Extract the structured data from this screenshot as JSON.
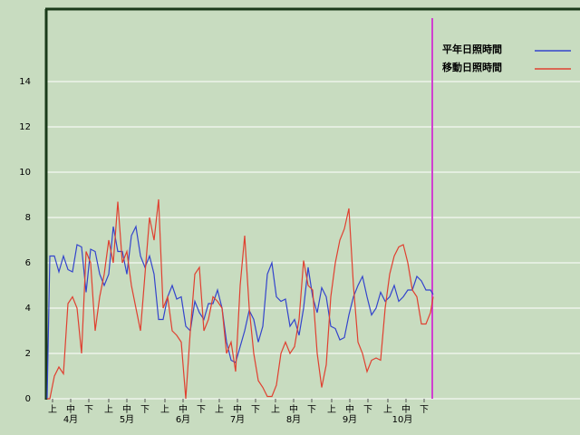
{
  "chart_data": {
    "type": "line",
    "x": [
      0,
      1.5,
      4,
      6.5,
      9,
      11.5,
      14,
      16.5,
      19,
      21.5,
      24,
      26.5,
      29,
      31.5,
      34,
      36.5,
      39,
      41.5,
      44,
      46.5,
      49,
      51.5,
      54,
      56.5,
      59,
      61.5,
      64,
      66.5,
      69,
      71.5,
      74,
      76.5,
      79,
      81.5,
      84,
      86.5,
      89,
      91.5,
      94,
      96.5,
      99,
      101.5,
      104,
      106.5,
      109,
      111.5,
      114,
      116.5,
      119,
      121.5,
      124,
      126.5,
      129,
      131.5,
      134,
      136.5,
      139,
      141.5,
      144,
      146.5,
      149,
      151.5,
      154,
      156.5,
      159,
      161.5,
      164,
      166.5,
      169,
      171.5,
      174,
      176.5,
      179,
      181.5,
      184,
      186.5,
      189,
      191.5,
      194,
      196.5,
      199,
      201.5,
      204,
      206.5,
      209,
      211.5,
      213
    ],
    "series": [
      {
        "name": "平年日照時間",
        "color": "#3344cc",
        "values": [
          0,
          6.3,
          6.3,
          5.6,
          6.3,
          5.7,
          5.6,
          6.8,
          6.7,
          4.7,
          6.6,
          6.5,
          5.5,
          5,
          5.5,
          7.6,
          6.5,
          6.5,
          5.5,
          7.2,
          7.6,
          6.3,
          5.8,
          6.3,
          5.5,
          3.5,
          3.5,
          4.5,
          5,
          4.4,
          4.5,
          3.2,
          3,
          4.3,
          3.8,
          3.5,
          4.2,
          4.2,
          4.8,
          4,
          2.5,
          1.7,
          1.6,
          2.3,
          3,
          3.9,
          3.5,
          2.5,
          3.2,
          5.5,
          6,
          4.5,
          4.3,
          4.4,
          3.2,
          3.5,
          2.8,
          4,
          5.8,
          4.5,
          3.8,
          4.9,
          4.5,
          3.2,
          3.1,
          2.6,
          2.7,
          3.7,
          4.5,
          5,
          5.4,
          4.5,
          3.7,
          4,
          4.7,
          4.3,
          4.5,
          5,
          4.3,
          4.5,
          4.8,
          4.8,
          5.4,
          5.2,
          4.8,
          4.8,
          4.6
        ]
      },
      {
        "name": "移動日照時間",
        "color": "#e04030",
        "values": [
          0,
          0,
          1,
          1.4,
          1.1,
          4.2,
          4.5,
          4,
          2,
          6.5,
          6,
          3,
          4.5,
          5.5,
          7,
          6,
          8.7,
          6,
          6.5,
          5,
          4,
          3,
          5.5,
          8,
          7,
          8.8,
          4,
          4.5,
          3,
          2.8,
          2.5,
          0,
          3,
          5.5,
          5.8,
          3,
          3.5,
          4.5,
          4.3,
          4,
          2,
          2.5,
          1.2,
          5,
          7.2,
          4,
          2,
          0.8,
          0.5,
          0.1,
          0.1,
          0.6,
          2,
          2.5,
          2,
          2.3,
          3.5,
          6.1,
          5,
          4.8,
          2,
          0.5,
          1.5,
          4.5,
          6,
          7,
          7.5,
          8.4,
          5,
          2.5,
          2,
          1.2,
          1.7,
          1.8,
          1.7,
          4,
          5.5,
          6.3,
          6.7,
          6.8,
          6,
          4.8,
          4.5,
          3.3,
          3.3,
          3.8,
          4.5
        ]
      }
    ],
    "xlim": [
      0,
      213
    ],
    "ylim": [
      0,
      17.2
    ],
    "yticks": [
      0,
      2,
      4,
      6,
      8,
      10,
      12,
      14
    ],
    "xticks": [
      {
        "value": 3,
        "label": "上"
      },
      {
        "value": 13,
        "label": "中"
      },
      {
        "value": 23,
        "label": "下"
      },
      {
        "value": 34,
        "label": "上"
      },
      {
        "value": 44,
        "label": "中"
      },
      {
        "value": 54,
        "label": "下"
      },
      {
        "value": 65,
        "label": "上"
      },
      {
        "value": 75,
        "label": "中"
      },
      {
        "value": 85,
        "label": "下"
      },
      {
        "value": 95,
        "label": "上"
      },
      {
        "value": 105,
        "label": "中"
      },
      {
        "value": 115,
        "label": "下"
      },
      {
        "value": 126,
        "label": "上"
      },
      {
        "value": 136,
        "label": "中"
      },
      {
        "value": 146,
        "label": "下"
      },
      {
        "value": 157,
        "label": "上"
      },
      {
        "value": 167,
        "label": "中"
      },
      {
        "value": 177,
        "label": "下"
      },
      {
        "value": 188,
        "label": "上"
      },
      {
        "value": 198,
        "label": "中"
      },
      {
        "value": 208,
        "label": "下"
      }
    ],
    "month_labels": [
      {
        "value": 13,
        "label": "4月"
      },
      {
        "value": 44,
        "label": "5月"
      },
      {
        "value": 75,
        "label": "6月"
      },
      {
        "value": 105,
        "label": "7月"
      },
      {
        "value": 136,
        "label": "8月"
      },
      {
        "value": 167,
        "label": "9月"
      },
      {
        "value": 196,
        "label": "10月"
      }
    ],
    "grid": true
  }
}
